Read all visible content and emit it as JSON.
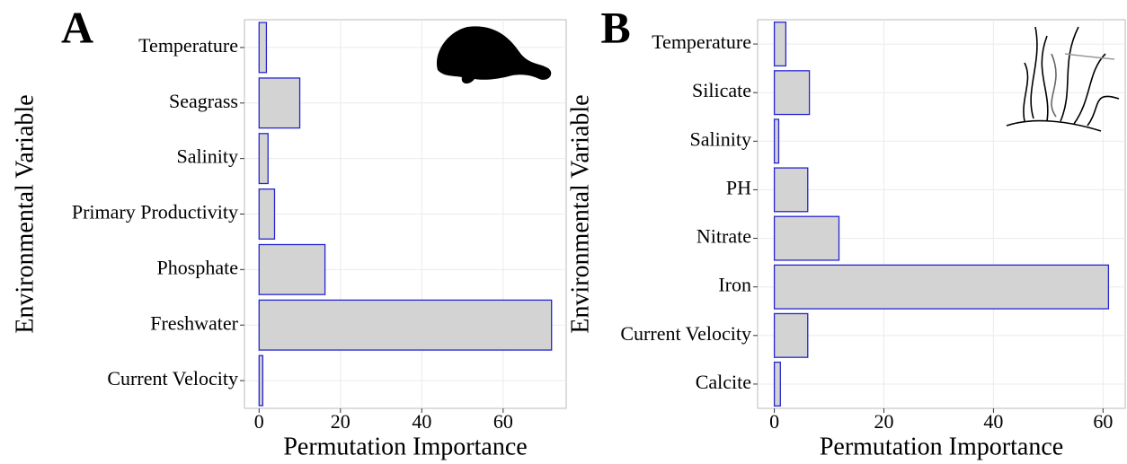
{
  "chart_data": [
    {
      "type": "barh",
      "panel_label": "A",
      "xlabel": "Permutation Importance",
      "ylabel": "Environmental Variable",
      "categories": [
        "Temperature",
        "Seagrass",
        "Salinity",
        "Primary Productivity",
        "Phosphate",
        "Freshwater",
        "Current Velocity"
      ],
      "values": [
        1.8,
        10,
        2.2,
        3.8,
        16.2,
        71.9,
        0.9
      ],
      "color": "#d3d3d3",
      "edgecolor": "#2626d0",
      "xlim": [
        -3.6,
        75.5
      ],
      "xticks": [
        0,
        20,
        40,
        60
      ],
      "grid": true
    },
    {
      "type": "barh",
      "panel_label": "B",
      "xlabel": "Permutation Importance",
      "ylabel": "Environmental Variable",
      "categories": [
        "Temperature",
        "Silicate",
        "Salinity",
        "PH",
        "Nitrate",
        "Iron",
        "Current Velocity",
        "Calcite"
      ],
      "values": [
        2.1,
        6.4,
        0.8,
        6.1,
        11.8,
        61,
        6.1,
        1.1
      ],
      "color": "#d3d3d3",
      "edgecolor": "#2626d0",
      "xlim": [
        -3.05,
        64.05
      ],
      "xticks": [
        0,
        20,
        40,
        60
      ],
      "grid": true
    }
  ]
}
